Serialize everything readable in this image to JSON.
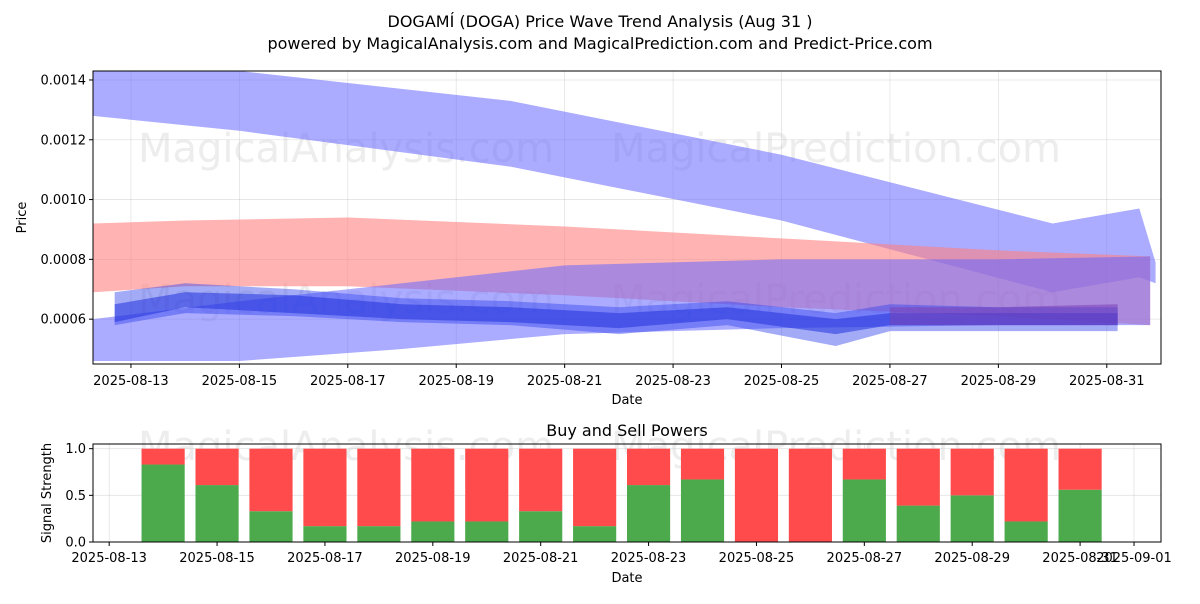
{
  "title": "DOGAMÍ (DOGA) Price Wave Trend Analysis (Aug 31 )",
  "subtitle": "powered by MagicalAnalysis.com and MagicalPrediction.com and Predict-Price.com",
  "watermarks": [
    "MagicalAnalysis.com",
    "MagicalPrediction.com"
  ],
  "chart_data": [
    {
      "type": "area",
      "xlabel": "Date",
      "ylabel": "Price",
      "xlim": [
        "2025-08-12.3",
        "2025-09-01.0"
      ],
      "ylim": [
        0.00045,
        0.00143
      ],
      "x_ticks": [
        "2025-08-13",
        "2025-08-15",
        "2025-08-17",
        "2025-08-19",
        "2025-08-21",
        "2025-08-23",
        "2025-08-25",
        "2025-08-27",
        "2025-08-29",
        "2025-08-31"
      ],
      "y_ticks": [
        "0.0006",
        "0.0008",
        "0.0010",
        "0.0012",
        "0.0014"
      ],
      "grid": true,
      "series": [
        {
          "color": "#6666ff",
          "opacity": 0.55,
          "points": [
            {
              "x": "2025-08-12.3",
              "lo": 0.00128,
              "hi": 0.00146
            },
            {
              "x": "2025-08-15",
              "lo": 0.00123,
              "hi": 0.00143
            },
            {
              "x": "2025-08-20",
              "lo": 0.00111,
              "hi": 0.00133
            },
            {
              "x": "2025-08-25",
              "lo": 0.00093,
              "hi": 0.00115
            },
            {
              "x": "2025-08-30",
              "lo": 0.00069,
              "hi": 0.00092
            },
            {
              "x": "2025-08-31.6",
              "lo": 0.00074,
              "hi": 0.00097
            },
            {
              "x": "2025-08-31.9",
              "lo": 0.00072,
              "hi": 0.00079
            }
          ]
        },
        {
          "color": "#ff8080",
          "opacity": 0.6,
          "points": [
            {
              "x": "2025-08-12.3",
              "lo": 0.00069,
              "hi": 0.00092
            },
            {
              "x": "2025-08-14",
              "lo": 0.00071,
              "hi": 0.00093
            },
            {
              "x": "2025-08-17",
              "lo": 0.00071,
              "hi": 0.00094
            },
            {
              "x": "2025-08-21",
              "lo": 0.00068,
              "hi": 0.00091
            },
            {
              "x": "2025-08-25",
              "lo": 0.00064,
              "hi": 0.00087
            },
            {
              "x": "2025-08-29",
              "lo": 0.00061,
              "hi": 0.00083
            },
            {
              "x": "2025-08-31.8",
              "lo": 0.00058,
              "hi": 0.00081
            }
          ]
        },
        {
          "color": "#6666ff",
          "opacity": 0.55,
          "points": [
            {
              "x": "2025-08-12.3",
              "lo": 0.00046,
              "hi": 0.0006
            },
            {
              "x": "2025-08-15",
              "lo": 0.00046,
              "hi": 0.00066
            },
            {
              "x": "2025-08-18",
              "lo": 0.0005,
              "hi": 0.00072
            },
            {
              "x": "2025-08-21",
              "lo": 0.00055,
              "hi": 0.00078
            },
            {
              "x": "2025-08-25",
              "lo": 0.00057,
              "hi": 0.0008
            },
            {
              "x": "2025-08-29",
              "lo": 0.00058,
              "hi": 0.0008
            },
            {
              "x": "2025-08-31.8",
              "lo": 0.00058,
              "hi": 0.00081
            }
          ]
        },
        {
          "color": "#3344ee",
          "opacity": 0.45,
          "points": [
            {
              "x": "2025-08-12.7",
              "lo": 0.00058,
              "hi": 0.00069
            },
            {
              "x": "2025-08-14",
              "lo": 0.00062,
              "hi": 0.00072
            },
            {
              "x": "2025-08-16",
              "lo": 0.00061,
              "hi": 0.0007
            },
            {
              "x": "2025-08-18",
              "lo": 0.00059,
              "hi": 0.00067
            },
            {
              "x": "2025-08-20",
              "lo": 0.00058,
              "hi": 0.00066
            },
            {
              "x": "2025-08-22",
              "lo": 0.00055,
              "hi": 0.00064
            },
            {
              "x": "2025-08-24",
              "lo": 0.00058,
              "hi": 0.00066
            },
            {
              "x": "2025-08-26",
              "lo": 0.00051,
              "hi": 0.00062
            },
            {
              "x": "2025-08-27",
              "lo": 0.00056,
              "hi": 0.00065
            },
            {
              "x": "2025-08-29",
              "lo": 0.00056,
              "hi": 0.00064
            },
            {
              "x": "2025-08-31.2",
              "lo": 0.00056,
              "hi": 0.00064
            }
          ]
        },
        {
          "color": "#2233dd",
          "opacity": 0.55,
          "points": [
            {
              "x": "2025-08-12.7",
              "lo": 0.00059,
              "hi": 0.00065
            },
            {
              "x": "2025-08-14",
              "lo": 0.00064,
              "hi": 0.00069
            },
            {
              "x": "2025-08-16",
              "lo": 0.00062,
              "hi": 0.00068
            },
            {
              "x": "2025-08-18",
              "lo": 0.0006,
              "hi": 0.00065
            },
            {
              "x": "2025-08-20",
              "lo": 0.00059,
              "hi": 0.00064
            },
            {
              "x": "2025-08-22",
              "lo": 0.00057,
              "hi": 0.00062
            },
            {
              "x": "2025-08-24",
              "lo": 0.0006,
              "hi": 0.00064
            },
            {
              "x": "2025-08-26",
              "lo": 0.00055,
              "hi": 0.0006
            },
            {
              "x": "2025-08-27",
              "lo": 0.00058,
              "hi": 0.00062
            },
            {
              "x": "2025-08-29",
              "lo": 0.00058,
              "hi": 0.00062
            },
            {
              "x": "2025-08-31.2",
              "lo": 0.00058,
              "hi": 0.00062
            }
          ]
        },
        {
          "color": "#7a3fb5",
          "opacity": 0.55,
          "points": [
            {
              "x": "2025-08-27",
              "lo": 0.00058,
              "hi": 0.00064
            },
            {
              "x": "2025-08-29",
              "lo": 0.00058,
              "hi": 0.00064
            },
            {
              "x": "2025-08-31.2",
              "lo": 0.00058,
              "hi": 0.00065
            }
          ]
        }
      ]
    },
    {
      "type": "bar",
      "title": "Buy and Sell Powers",
      "xlabel": "Date",
      "ylabel": "Signal Strength",
      "xlim": [
        "2025-08-13.0",
        "2025-09-01.0"
      ],
      "ylim": [
        0,
        1.05
      ],
      "x_ticks": [
        "2025-08-13",
        "2025-08-15",
        "2025-08-17",
        "2025-08-19",
        "2025-08-21",
        "2025-08-23",
        "2025-08-25",
        "2025-08-27",
        "2025-08-29",
        "2025-08-31",
        "2025-09-01"
      ],
      "y_ticks": [
        "0.0",
        "0.5",
        "1.0"
      ],
      "grid": true,
      "colors": {
        "buy": "#4caa4c",
        "sell": "#ff4b4b"
      },
      "categories": [
        "2025-08-14",
        "2025-08-15",
        "2025-08-16",
        "2025-08-17",
        "2025-08-18",
        "2025-08-19",
        "2025-08-20",
        "2025-08-21",
        "2025-08-22",
        "2025-08-23",
        "2025-08-24",
        "2025-08-25",
        "2025-08-26",
        "2025-08-27",
        "2025-08-28",
        "2025-08-29",
        "2025-08-30",
        "2025-08-31"
      ],
      "series": [
        {
          "values": [
            0.83,
            0.61,
            0.33,
            0.17,
            0.17,
            0.22,
            0.22,
            0.33,
            0.17,
            0.61,
            0.67,
            0.0,
            0.0,
            0.67,
            0.39,
            0.5,
            0.22,
            0.56
          ]
        },
        {
          "values": [
            0.17,
            0.39,
            0.67,
            0.83,
            0.83,
            0.78,
            0.78,
            0.67,
            0.83,
            0.39,
            0.33,
            1.0,
            1.0,
            0.33,
            0.61,
            0.5,
            0.78,
            0.44
          ]
        }
      ]
    }
  ]
}
